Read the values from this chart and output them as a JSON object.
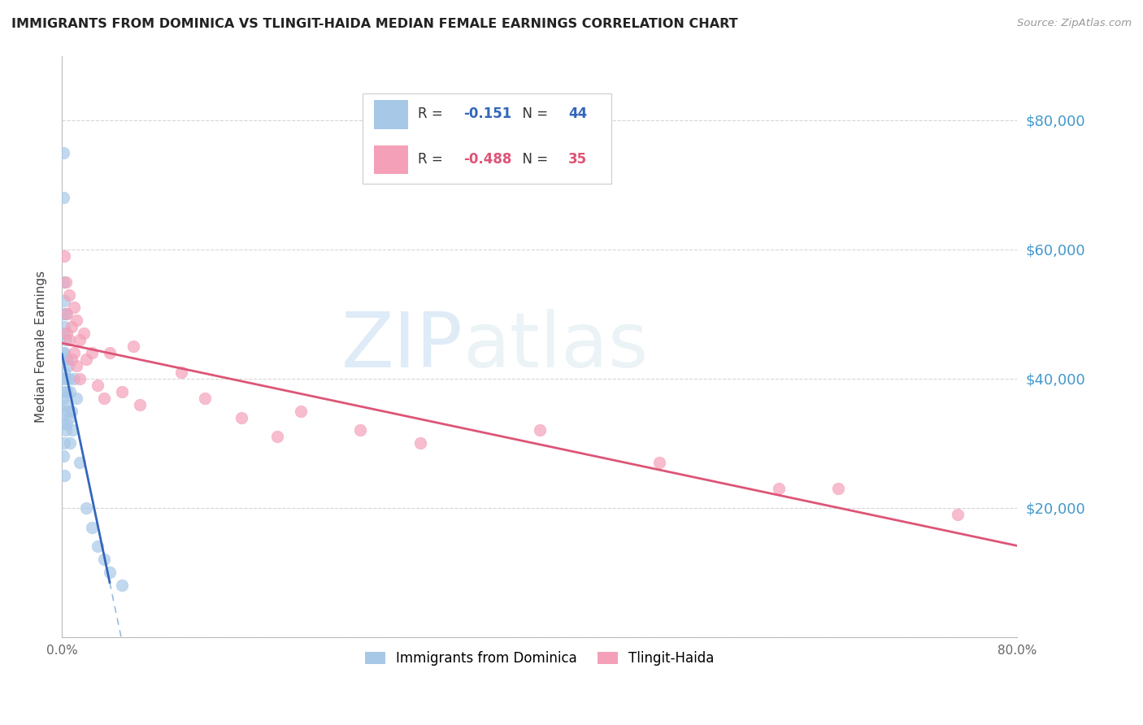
{
  "title": "IMMIGRANTS FROM DOMINICA VS TLINGIT-HAIDA MEDIAN FEMALE EARNINGS CORRELATION CHART",
  "source": "Source: ZipAtlas.com",
  "ylabel": "Median Female Earnings",
  "yticks": [
    0,
    20000,
    40000,
    60000,
    80000
  ],
  "ytick_labels": [
    "",
    "$20,000",
    "$40,000",
    "$60,000",
    "$80,000"
  ],
  "xlim": [
    0.0,
    0.8
  ],
  "ylim": [
    0,
    90000
  ],
  "watermark_zip": "ZIP",
  "watermark_atlas": "atlas",
  "legend": {
    "blue_R": "-0.151",
    "blue_N": "44",
    "pink_R": "-0.488",
    "pink_N": "35"
  },
  "blue_color": "#a8c8e8",
  "pink_color": "#f4a0b8",
  "blue_line_color": "#3366bb",
  "pink_line_color": "#dd5577",
  "dashed_line_color": "#99bbdd",
  "blue_scatter_x": [
    0.001,
    0.001,
    0.001,
    0.001,
    0.001,
    0.001,
    0.001,
    0.001,
    0.001,
    0.001,
    0.002,
    0.002,
    0.002,
    0.002,
    0.002,
    0.002,
    0.002,
    0.002,
    0.003,
    0.003,
    0.003,
    0.003,
    0.003,
    0.003,
    0.004,
    0.004,
    0.004,
    0.005,
    0.005,
    0.006,
    0.006,
    0.007,
    0.007,
    0.008,
    0.009,
    0.01,
    0.012,
    0.015,
    0.02,
    0.025,
    0.03,
    0.035,
    0.04,
    0.05
  ],
  "blue_scatter_y": [
    75000,
    68000,
    55000,
    50000,
    47000,
    44000,
    40000,
    37000,
    33000,
    28000,
    52000,
    48000,
    44000,
    41000,
    38000,
    35000,
    30000,
    25000,
    50000,
    46000,
    43000,
    40000,
    36000,
    32000,
    43000,
    38000,
    33000,
    42000,
    35000,
    40000,
    34000,
    38000,
    30000,
    35000,
    32000,
    40000,
    37000,
    27000,
    20000,
    17000,
    14000,
    12000,
    10000,
    8000
  ],
  "pink_scatter_x": [
    0.002,
    0.003,
    0.004,
    0.004,
    0.006,
    0.006,
    0.008,
    0.008,
    0.01,
    0.01,
    0.012,
    0.012,
    0.015,
    0.015,
    0.018,
    0.02,
    0.025,
    0.03,
    0.035,
    0.04,
    0.05,
    0.06,
    0.065,
    0.1,
    0.12,
    0.15,
    0.18,
    0.2,
    0.25,
    0.3,
    0.4,
    0.5,
    0.6,
    0.65,
    0.75
  ],
  "pink_scatter_y": [
    59000,
    55000,
    50000,
    47000,
    53000,
    46000,
    48000,
    43000,
    51000,
    44000,
    49000,
    42000,
    46000,
    40000,
    47000,
    43000,
    44000,
    39000,
    37000,
    44000,
    38000,
    45000,
    36000,
    41000,
    37000,
    34000,
    31000,
    35000,
    32000,
    30000,
    32000,
    27000,
    23000,
    23000,
    19000
  ],
  "background_color": "#ffffff",
  "grid_color": "#cccccc"
}
